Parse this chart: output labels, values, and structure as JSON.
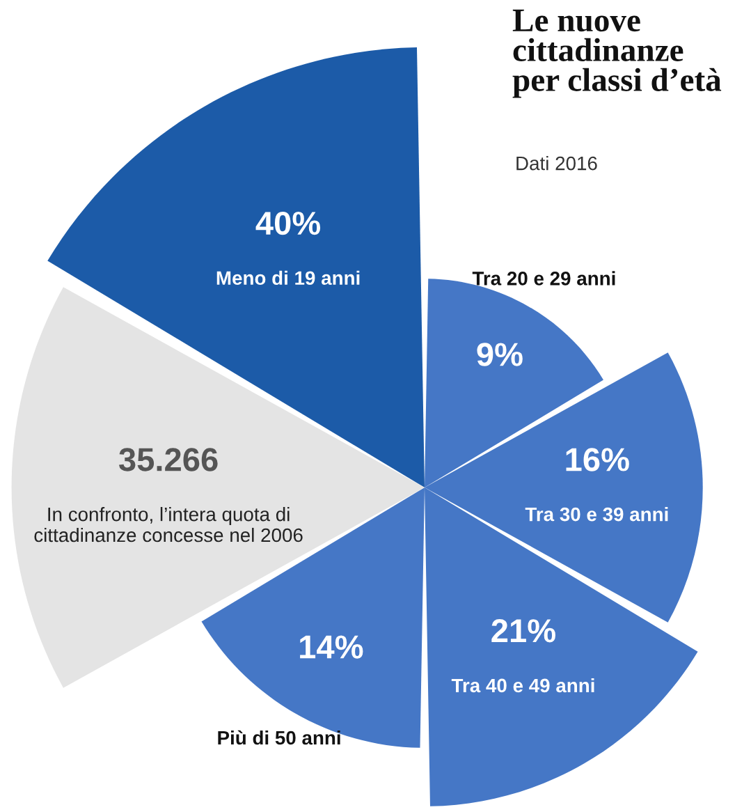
{
  "chart_data": {
    "type": "other",
    "title": "Le nuove cittadinanze per classi d’età",
    "subtitle": "Dati 2016",
    "categories": [
      "Meno di 19 anni",
      "Tra 20 e 29 anni",
      "Tra 30 e 39 anni",
      "Tra 40 e 49 anni",
      "Più di 50 anni",
      "In confronto, l’intera quota di cittadinanze concesse nel 2006"
    ],
    "values": [
      40,
      9,
      16,
      21,
      14,
      35.266
    ],
    "value_labels": [
      "40%",
      "9%",
      "16%",
      "21%",
      "14%",
      "35.266"
    ],
    "colors": [
      "#1c5ba8",
      "#4577c6",
      "#4577c6",
      "#4577c6",
      "#4577c6",
      "#e4e4e4"
    ]
  }
}
